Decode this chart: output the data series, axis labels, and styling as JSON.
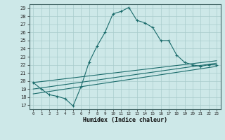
{
  "xlabel": "Humidex (Indice chaleur)",
  "ylabel": "",
  "xlim": [
    -0.5,
    23.5
  ],
  "ylim": [
    16.5,
    29.5
  ],
  "xticks": [
    0,
    1,
    2,
    3,
    4,
    5,
    6,
    7,
    8,
    9,
    10,
    11,
    12,
    13,
    14,
    15,
    16,
    17,
    18,
    19,
    20,
    21,
    22,
    23
  ],
  "yticks": [
    17,
    18,
    19,
    20,
    21,
    22,
    23,
    24,
    25,
    26,
    27,
    28,
    29
  ],
  "line_color": "#1a6b6b",
  "bg_color": "#cde8e8",
  "grid_color": "#a8cccc",
  "main_line": {
    "x": [
      0,
      1,
      2,
      3,
      4,
      5,
      6,
      7,
      8,
      9,
      10,
      11,
      12,
      13,
      14,
      15,
      16,
      17,
      18,
      19,
      20,
      21,
      22,
      23
    ],
    "y": [
      19.8,
      19.0,
      18.3,
      18.1,
      17.8,
      16.9,
      19.3,
      22.3,
      24.3,
      26.0,
      28.3,
      28.6,
      29.1,
      27.5,
      27.2,
      26.6,
      25.0,
      25.0,
      23.2,
      22.3,
      22.0,
      21.8,
      22.0,
      22.0
    ]
  },
  "line2": {
    "x": [
      0,
      23
    ],
    "y": [
      19.0,
      22.2
    ]
  },
  "line3": {
    "x": [
      0,
      23
    ],
    "y": [
      18.4,
      21.8
    ]
  },
  "line4": {
    "x": [
      0,
      23
    ],
    "y": [
      19.8,
      22.5
    ]
  }
}
